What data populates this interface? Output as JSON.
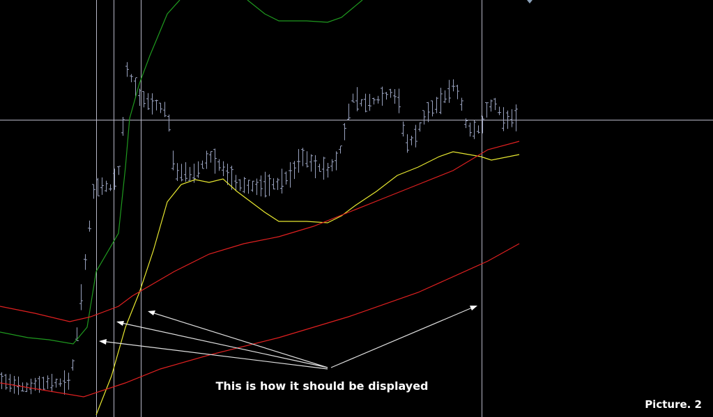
{
  "annotation": "This is how it should be displayed",
  "caption": "Picture. 2"
}
